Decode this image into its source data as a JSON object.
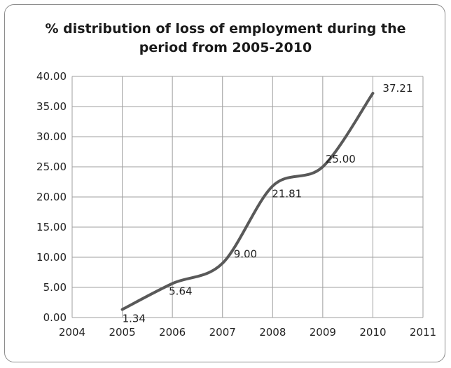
{
  "chart_data": {
    "type": "line",
    "title_lines": [
      "% distribution of loss of employment during the",
      "period from 2005-2010"
    ],
    "x": [
      2005,
      2006,
      2007,
      2008,
      2009,
      2010
    ],
    "y": [
      1.34,
      5.64,
      9.0,
      21.81,
      25.0,
      37.21
    ],
    "data_labels": [
      "1.34",
      "5.64",
      "9.00",
      "21.81",
      "25.00",
      "37.21"
    ],
    "x_ticks": [
      "2004",
      "2005",
      "2006",
      "2007",
      "2008",
      "2009",
      "2010",
      "2011"
    ],
    "y_ticks": [
      "0.00",
      "5.00",
      "10.00",
      "15.00",
      "20.00",
      "25.00",
      "30.00",
      "35.00",
      "40.00"
    ],
    "xlim": [
      2004,
      2011
    ],
    "ylim": [
      0,
      40
    ],
    "grid": true,
    "smooth": true,
    "line_color": "#595959",
    "grid_color": "#9f9f9f",
    "legend": "none"
  }
}
